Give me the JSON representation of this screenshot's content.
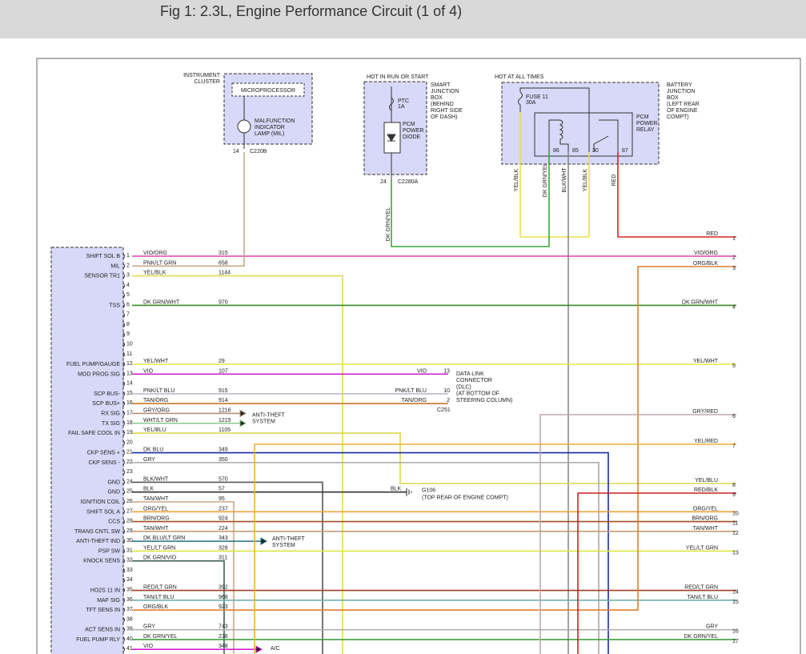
{
  "header": {
    "title": "Fig 1: 2.3L, Engine Performance Circuit (1 of 4)"
  },
  "instrument_cluster": {
    "label": [
      "INSTRUMENT",
      "CLUSTER"
    ],
    "microprocessor": "MICROPROCESSOR",
    "lamp": [
      "MALFUNCTION",
      "INDICATOR",
      "LAMP (MIL)"
    ],
    "pin": 14,
    "connector": "C220B"
  },
  "smart_junction_box": {
    "power": "HOT IN RUN OR START",
    "label": [
      "SMART",
      "JUNCTION",
      "BOX",
      "(BEHIND",
      "RIGHT SIDE",
      "OF DASH)"
    ],
    "ptc": [
      "PTC",
      "1A"
    ],
    "diode": [
      "PCM",
      "POWER",
      "DIODE"
    ],
    "pin": 24,
    "connector": "C2280A",
    "wire": "DK GRN/YEL"
  },
  "battery_junction_box": {
    "power": "HOT AT ALL TIMES",
    "label": [
      "BATTERY",
      "JUNCTION",
      "BOX",
      "(LEFT REAR",
      "OF ENGINE",
      "COMPT)"
    ],
    "fuse": [
      "FUSE 11",
      "30A"
    ],
    "relay": [
      "PCM",
      "POWER",
      "RELAY"
    ],
    "relay_pins": [
      86,
      85,
      30,
      87
    ],
    "wires": [
      {
        "wire": "YEL/BLK",
        "color": "#e6e04a"
      },
      {
        "wire": "DK GRN/YEL",
        "color": "#3aa63a"
      },
      {
        "wire": "BLK/WHT",
        "color": "#8a8a8a"
      },
      {
        "wire": "YEL/BLK",
        "color": "#e6e04a"
      },
      {
        "wire": "RED",
        "color": "#e02020"
      }
    ]
  },
  "pcm": {
    "pins": [
      {
        "num": 1,
        "name": "SHIFT SOL B",
        "wire": "VIO/ORG",
        "circuit": 315,
        "color": "#e040b0"
      },
      {
        "num": 2,
        "name": "MIL",
        "wire": "PNK/LT GRN",
        "circuit": 658,
        "color": "#c8a88a"
      },
      {
        "num": 3,
        "name": "SENSOR TR1",
        "wire": "YEL/BLK",
        "circuit": 1144,
        "color": "#e0dc50"
      },
      {
        "num": 4
      },
      {
        "num": 5
      },
      {
        "num": 6,
        "name": "TSS",
        "wire": "DK GRN/WHT",
        "circuit": 970,
        "color": "#3a8a2a"
      },
      {
        "num": 7
      },
      {
        "num": 8
      },
      {
        "num": 9
      },
      {
        "num": 10
      },
      {
        "num": 11
      },
      {
        "num": 12,
        "name": "FUEL PUMP/GAUGE",
        "wire": "YEL/WHT",
        "circuit": 29,
        "color": "#e8e850"
      },
      {
        "num": 13,
        "name": "MOD PROG SIG",
        "wire": "VIO",
        "circuit": 107,
        "color": "#d020c8"
      },
      {
        "num": 14
      },
      {
        "num": 15,
        "name": "SCP BUS-",
        "wire": "PNK/LT BLU",
        "circuit": 915,
        "color": "#c4b8c8"
      },
      {
        "num": 16,
        "name": "SCP BUS+",
        "wire": "TAN/ORG",
        "circuit": 914,
        "color": "#c8782a"
      },
      {
        "num": 17,
        "name": "RX SIG",
        "wire": "GRY/ORG",
        "circuit": 1216,
        "color": "#b09080"
      },
      {
        "num": 18,
        "name": "TX SIG",
        "wire": "WHT/LT GRN",
        "circuit": 1215,
        "color": "#90c890"
      },
      {
        "num": 19,
        "name": "FAIL SAFE COOL IN",
        "wire": "YEL/BLU",
        "circuit": 1105,
        "color": "#d8d850"
      },
      {
        "num": 20
      },
      {
        "num": 21,
        "name": "CKP SENS +",
        "wire": "DK BLU",
        "circuit": 349,
        "color": "#1a2aa0"
      },
      {
        "num": 22,
        "name": "CKP SENS -",
        "wire": "GRY",
        "circuit": 350,
        "color": "#a8a8a8"
      },
      {
        "num": 23
      },
      {
        "num": 24,
        "name": "GND",
        "wire": "BLK/WHT",
        "circuit": 570,
        "color": "#555555"
      },
      {
        "num": 25,
        "name": "GND",
        "wire": "BLK",
        "circuit": 57,
        "color": "#333333"
      },
      {
        "num": 26,
        "name": "IGNITION COIL",
        "wire": "TAN/WHT",
        "circuit": 95,
        "color": "#c8a888"
      },
      {
        "num": 27,
        "name": "SHIFT SOL A",
        "wire": "ORG/YEL",
        "circuit": 237,
        "color": "#f0a040"
      },
      {
        "num": 28,
        "name": "CCS",
        "wire": "BRN/ORG",
        "circuit": 924,
        "color": "#a05020"
      },
      {
        "num": 29,
        "name": "TRANS CNTL SW",
        "wire": "TAN/WHT",
        "circuit": 224,
        "color": "#c0a070"
      },
      {
        "num": 30,
        "name": "ANTI-THEFT IND",
        "wire": "DK BLU/LT GRN",
        "circuit": 343,
        "color": "#207080"
      },
      {
        "num": 31,
        "name": "PSP SW",
        "wire": "YEL/LT GRN",
        "circuit": 328,
        "color": "#d8e840"
      },
      {
        "num": 32,
        "name": "KNOCK SENS",
        "wire": "DK GRN/VIO",
        "circuit": 311,
        "color": "#406050"
      },
      {
        "num": 33
      },
      {
        "num": 34
      },
      {
        "num": 35,
        "name": "HO2S 11 IN",
        "wire": "RED/LT GRN",
        "circuit": 392,
        "color": "#a04020"
      },
      {
        "num": 36,
        "name": "MAF SIG",
        "wire": "TAN/LT BLU",
        "circuit": 968,
        "color": "#70b0b0"
      },
      {
        "num": 37,
        "name": "TFT SENS IN",
        "wire": "ORG/BLK",
        "circuit": 923,
        "color": "#e08030"
      },
      {
        "num": 38
      },
      {
        "num": 39,
        "name": "ACT SENS IN",
        "wire": "GRY",
        "circuit": 743,
        "color": "#b0b0b0"
      },
      {
        "num": 40,
        "name": "FUEL PUMP RLY",
        "wire": "DK GRN/YEL",
        "circuit": 238,
        "color": "#40a040"
      },
      {
        "num": 41,
        "wire": "VIO",
        "circuit": 348,
        "color": "#d020d0"
      }
    ]
  },
  "dlc": {
    "pins": [
      {
        "wire": "VIO",
        "num": 13
      },
      {
        "wire": "PNK/LT BLU",
        "num": 10
      },
      {
        "wire": "TAN/ORG",
        "num": 2
      }
    ],
    "label": [
      "DATA LINK",
      "CONNECTOR",
      "(DLC)",
      "(AT BOTTOM OF",
      "STEERING COLUMN)"
    ],
    "connector": "C251"
  },
  "ground": {
    "wire": "BLK",
    "name": "G106",
    "location": "(TOP REAR OF ENGINE COMPT)"
  },
  "anti_theft_1": [
    "ANTI-THEFT",
    "SYSTEM"
  ],
  "anti_theft_2": [
    "ANTI-THEFT",
    "SYSTEM"
  ],
  "ac": "A/C",
  "right_connector": [
    {
      "num": 1,
      "wire": "RED",
      "color": "#e02020"
    },
    {
      "num": 2,
      "wire": "VIO/ORG",
      "color": "#e040b0"
    },
    {
      "num": 3,
      "wire": "ORG/BLK",
      "color": "#e08030"
    },
    {
      "num": 4,
      "wire": "DK GRN/WHT",
      "color": "#3a8a2a"
    },
    {
      "num": 5,
      "wire": "YEL/WHT",
      "color": "#e8e850"
    },
    {
      "num": 6,
      "wire": "GRY/RED",
      "color": "#c0a8a8"
    },
    {
      "num": 7,
      "wire": "YEL/RED",
      "color": "#f0b030"
    },
    {
      "num": 8,
      "wire": "YEL/BLU",
      "color": "#d8d850"
    },
    {
      "num": 9,
      "wire": "RED/BLK",
      "color": "#d02020"
    },
    {
      "num": 10,
      "wire": "ORG/YEL",
      "color": "#f0a040"
    },
    {
      "num": 11,
      "wire": "BRN/ORG",
      "color": "#a05020"
    },
    {
      "num": 12,
      "wire": "TAN/WHT",
      "color": "#c0a070"
    },
    {
      "num": 13,
      "wire": "YEL/LT GRN",
      "color": "#d8e840"
    },
    {
      "num": 14,
      "wire": "RED/LT GRN",
      "color": "#a04020"
    },
    {
      "num": 15,
      "wire": "TAN/LT BLU",
      "color": "#70b0b0"
    },
    {
      "num": 16,
      "wire": "GRY",
      "color": "#b0b0b0"
    },
    {
      "num": 17,
      "wire": "DK GRN/YEL",
      "color": "#40a040"
    }
  ]
}
